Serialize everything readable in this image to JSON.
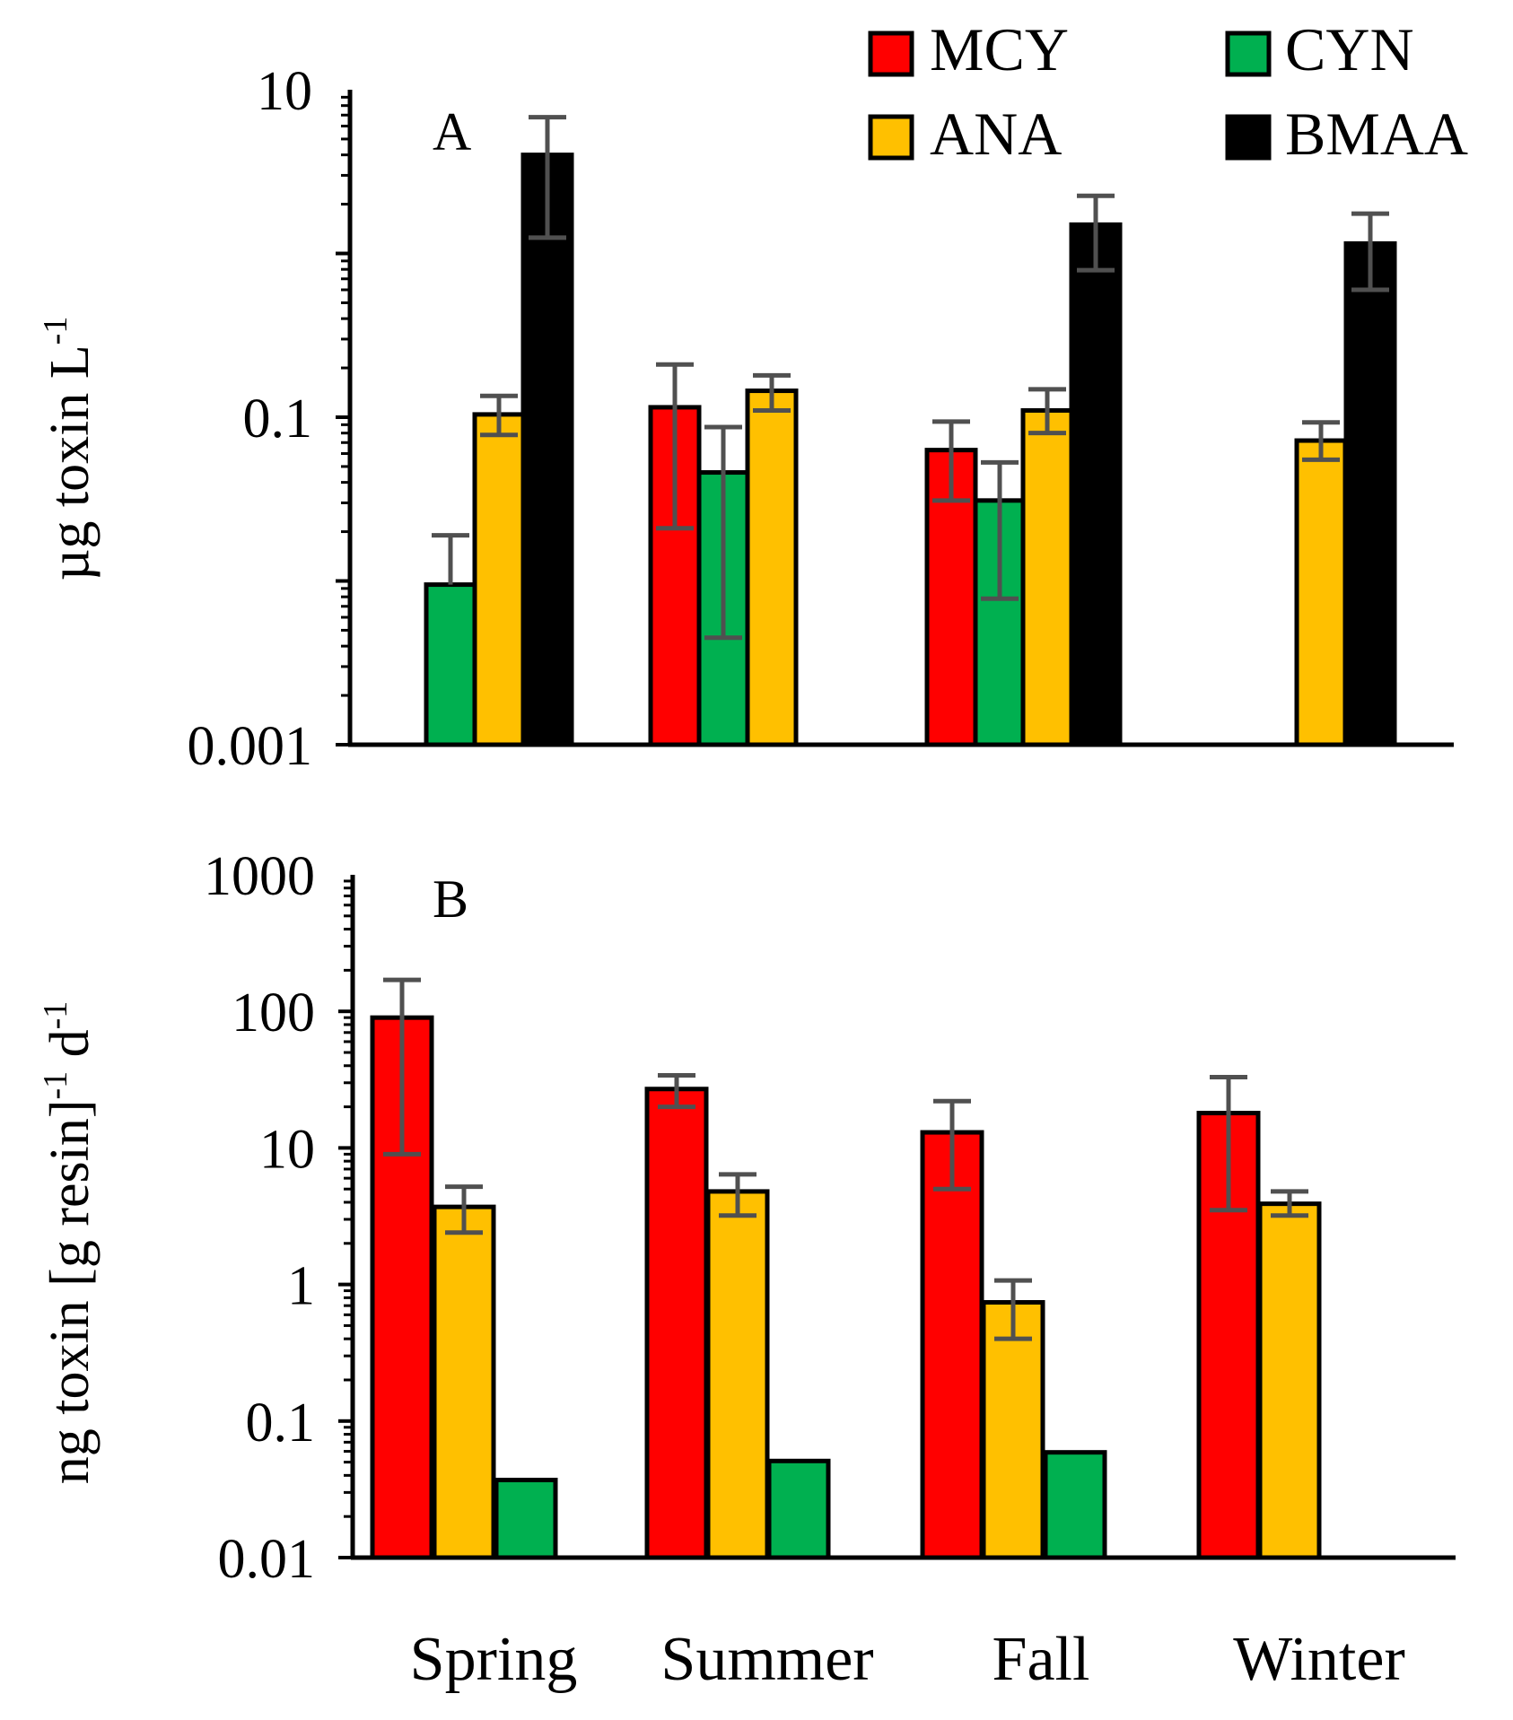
{
  "legend": {
    "items": [
      {
        "key": "MCY",
        "label": "MCY",
        "color": "#ff0000"
      },
      {
        "key": "CYN",
        "label": "CYN",
        "color": "#00b050"
      },
      {
        "key": "ANA",
        "label": "ANA",
        "color": "#ffc000"
      },
      {
        "key": "BMAA",
        "label": "BMAA",
        "color": "#000000"
      }
    ]
  },
  "categories": [
    "Spring",
    "Summer",
    "Fall",
    "Winter"
  ],
  "chart_data": [
    {
      "type": "bar",
      "panel": "A",
      "panel_label": "A",
      "yscale": "log",
      "ylim": [
        0.001,
        10
      ],
      "tick_labels": [
        "10",
        "0.1",
        "0.001"
      ],
      "tick_values": [
        10,
        0.1,
        0.001
      ],
      "ylabel": "µg toxin L",
      "ylabel_sup": "-1",
      "categories": [
        "Spring",
        "Summer",
        "Fall",
        "Winter"
      ],
      "series": [
        {
          "name": "MCY",
          "values": [
            null,
            0.115,
            0.063,
            null
          ],
          "err_low": [
            null,
            0.021,
            0.031,
            null
          ],
          "err_high": [
            null,
            0.21,
            0.094,
            null
          ]
        },
        {
          "name": "CYN",
          "values": [
            0.0095,
            0.046,
            0.031,
            null
          ],
          "err_low": [
            null,
            0.0045,
            0.0078,
            null
          ],
          "err_high": [
            0.019,
            0.087,
            0.053,
            null
          ]
        },
        {
          "name": "ANA",
          "values": [
            0.104,
            0.145,
            0.11,
            0.072
          ],
          "err_low": [
            0.078,
            0.11,
            0.08,
            0.055
          ],
          "err_high": [
            0.135,
            0.18,
            0.148,
            0.093
          ]
        },
        {
          "name": "BMAA",
          "values": [
            4.0,
            null,
            1.5,
            1.15
          ],
          "err_low": [
            1.25,
            null,
            0.79,
            0.6
          ],
          "err_high": [
            6.8,
            null,
            2.25,
            1.75
          ]
        }
      ]
    },
    {
      "type": "bar",
      "panel": "B",
      "panel_label": "B",
      "yscale": "log",
      "ylim": [
        0.01,
        1000
      ],
      "tick_labels": [
        "1000",
        "100",
        "10",
        "1",
        "0.1",
        "0.01"
      ],
      "tick_values": [
        1000,
        100,
        10,
        1,
        0.1,
        0.01
      ],
      "ylabel_parts": [
        "ng toxin [g resin]",
        "-1",
        " d",
        "-1"
      ],
      "categories": [
        "Spring",
        "Summer",
        "Fall",
        "Winter"
      ],
      "series": [
        {
          "name": "MCY",
          "values": [
            90,
            27,
            13,
            18
          ],
          "err_low": [
            9,
            20,
            5,
            3.5
          ],
          "err_high": [
            170,
            34,
            22,
            33
          ]
        },
        {
          "name": "ANA",
          "values": [
            3.7,
            4.8,
            0.74,
            3.9
          ],
          "err_low": [
            2.4,
            3.2,
            0.4,
            3.2
          ],
          "err_high": [
            5.2,
            6.4,
            1.07,
            4.8
          ]
        },
        {
          "name": "CYN",
          "values": [
            0.037,
            0.051,
            0.059,
            null
          ],
          "err_low": [
            null,
            null,
            null,
            null
          ],
          "err_high": [
            null,
            null,
            null,
            null
          ]
        }
      ]
    }
  ]
}
